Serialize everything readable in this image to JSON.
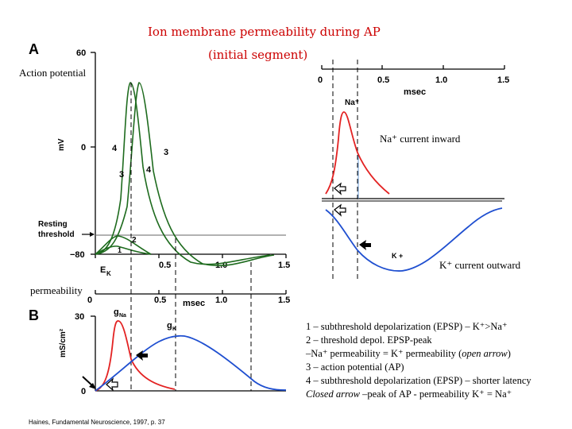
{
  "title": {
    "line1": "Ion membrane permeability during AP",
    "line2": "(initial segment)"
  },
  "panel_a": {
    "letter": "A",
    "label": "Action potential",
    "y_ticks": [
      "60",
      "0",
      "−80"
    ],
    "y_unit": "mV",
    "resting_label": "Resting",
    "threshold_label": "threshold",
    "ek_label": "E",
    "ek_sub": "K",
    "x_ticks": [
      "0",
      "0.5",
      "1.0",
      "1.5"
    ],
    "x_unit": "msec",
    "curve_numbers": [
      "1",
      "2",
      "3",
      "4"
    ]
  },
  "panel_b": {
    "letter": "B",
    "label": "permeability",
    "y_ticks": [
      "30",
      "0"
    ],
    "y_unit": "mS/cm²",
    "gna_label": "g",
    "gna_sub": "Na",
    "gk_label": "g",
    "gk_sub": "K"
  },
  "panel_c": {
    "x_ticks": [
      "0",
      "0.5",
      "1.0",
      "1.5"
    ],
    "x_unit": "msec",
    "na_peak_label": "Na⁺",
    "k_label": "K +",
    "na_current_label": "Na⁺ current inward",
    "k_current_label": "K⁺ current outward"
  },
  "legend": [
    "1 – subthreshold depolarization (EPSP) – K⁺>Na⁺",
    "2 – threshold depol. EPSP-peak",
    " –Na⁺ permeability = K⁺ permeability (",
    "open arrow",
    ")",
    "3 – action potential (AP)",
    "4 – subthreshold depolarization (EPSP) – shorter latency",
    "Closed arrow",
    " –peak of AP - permeability K⁺ = Na⁺"
  ],
  "citation": "Haines, Fundamental Neuroscience, 1997, p. 37",
  "colors": {
    "title": "#cc0000",
    "green": "#1e6b1e",
    "red": "#e32222",
    "blue": "#1f4fd0"
  }
}
